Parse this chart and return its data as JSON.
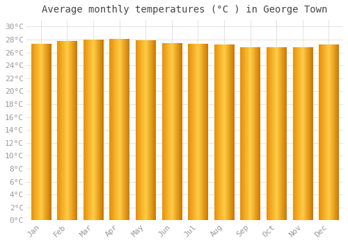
{
  "title": "Average monthly temperatures (°C ) in George Town",
  "months": [
    "Jan",
    "Feb",
    "Mar",
    "Apr",
    "May",
    "Jun",
    "Jul",
    "Aug",
    "Sep",
    "Oct",
    "Nov",
    "Dec"
  ],
  "values": [
    27.3,
    27.8,
    28.0,
    28.1,
    27.9,
    27.5,
    27.3,
    27.2,
    26.8,
    26.8,
    26.8,
    27.2
  ],
  "bar_color_left": "#E8900A",
  "bar_color_mid": "#FFCC44",
  "bar_color_right": "#CC7700",
  "background_color": "#FFFFFF",
  "plot_bg_color": "#FFFFFF",
  "grid_color": "#DDDDDD",
  "tick_label_color": "#999999",
  "title_color": "#444444",
  "ylim": [
    0,
    31
  ],
  "title_fontsize": 10,
  "tick_fontsize": 8
}
